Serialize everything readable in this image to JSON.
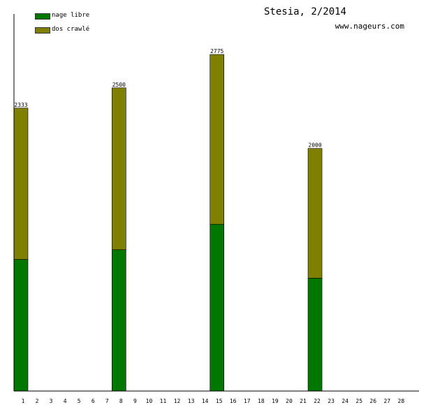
{
  "header": {
    "title": "Stesia, 2/2014",
    "url": "www.nageurs.com"
  },
  "colors": {
    "nage_libre": "#007800",
    "dos_crawle": "#7f7f00",
    "axis": "#000000"
  },
  "chart_data": {
    "type": "bar",
    "stacked": true,
    "title": "Stesia, 2/2014",
    "xlabel": "",
    "ylabel": "",
    "categories": [
      "1",
      "2",
      "3",
      "4",
      "5",
      "6",
      "7",
      "8",
      "9",
      "10",
      "11",
      "12",
      "13",
      "14",
      "15",
      "16",
      "17",
      "18",
      "19",
      "20",
      "21",
      "22",
      "23",
      "24",
      "25",
      "26",
      "27",
      "28"
    ],
    "ylim": [
      0,
      2775
    ],
    "legend": {
      "placement": "top-left"
    },
    "grid": false,
    "series": [
      {
        "name": "nage libre",
        "color": "#007800",
        "values": [
          1085,
          0,
          0,
          0,
          0,
          0,
          0,
          1165,
          0,
          0,
          0,
          0,
          0,
          0,
          1375,
          0,
          0,
          0,
          0,
          0,
          0,
          930,
          0,
          0,
          0,
          0,
          0,
          0
        ]
      },
      {
        "name": "dos crawlé",
        "color": "#7f7f00",
        "values": [
          1248,
          0,
          0,
          0,
          0,
          0,
          0,
          1335,
          0,
          0,
          0,
          0,
          0,
          0,
          1400,
          0,
          0,
          0,
          0,
          0,
          0,
          1070,
          0,
          0,
          0,
          0,
          0,
          0
        ]
      }
    ],
    "totals": [
      2333,
      0,
      0,
      0,
      0,
      0,
      0,
      2500,
      0,
      0,
      0,
      0,
      0,
      0,
      2775,
      0,
      0,
      0,
      0,
      0,
      0,
      2000,
      0,
      0,
      0,
      0,
      0,
      0
    ]
  }
}
